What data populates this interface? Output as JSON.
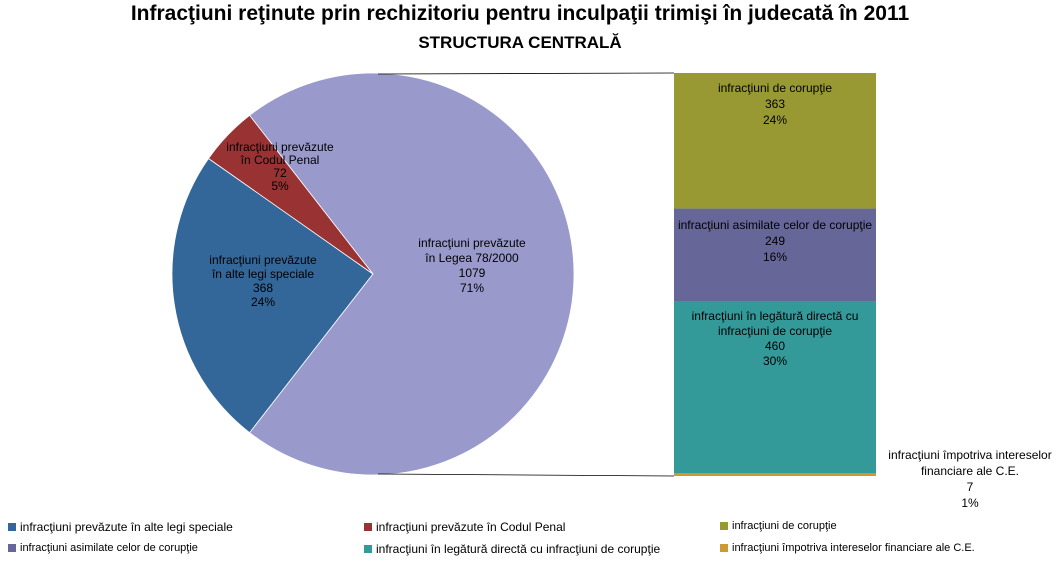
{
  "title": "Infracţiuni reţinute prin rechizitoriu pentru inculpaţii trimişi în judecată în 2011",
  "subtitle": "STRUCTURA CENTRALĂ",
  "chart_data": {
    "type": "bar-of-pie",
    "pie": [
      {
        "lines": [
          "infracţiuni prevăzute",
          "în alte legi speciale"
        ],
        "value": 368,
        "percent": "24%",
        "color": "#336699"
      },
      {
        "lines": [
          "infracţiuni prevăzute",
          "în Codul Penal"
        ],
        "value": 72,
        "percent": "5%",
        "color": "#993333"
      },
      {
        "lines": [
          "infracţiuni prevăzute",
          "în Legea 78/2000"
        ],
        "value": 1079,
        "percent": "71%",
        "color": "#9999cc"
      }
    ],
    "bar": [
      {
        "lines": [
          "infracţiuni de corupţie"
        ],
        "value": 363,
        "percent": "24%",
        "color": "#999933"
      },
      {
        "lines": [
          "infracţiuni asimilate  celor de corupţie"
        ],
        "value": 249,
        "percent": "16%",
        "color": "#666699"
      },
      {
        "lines": [
          "infracţiuni în legătură directă cu",
          "infracţiuni de corupţie"
        ],
        "value": 460,
        "percent": "30%",
        "color": "#339999"
      },
      {
        "lines": [
          "infracţiuni împotriva intereselor",
          "financiare ale C.E."
        ],
        "value": 7,
        "percent": "1%",
        "color": "#cc9933"
      }
    ],
    "legend": [
      {
        "label": "infracţiuni prevăzute în alte legi speciale",
        "color": "#336699"
      },
      {
        "label": "infracţiuni prevăzute în Codul Penal",
        "color": "#993333"
      },
      {
        "label": "infracţiuni de corupţie",
        "color": "#999933"
      },
      {
        "label": "infracţiuni asimilate  celor de corupţie",
        "color": "#666699"
      },
      {
        "label": "infracţiuni în legătură directă cu infracţiuni de corupţie",
        "color": "#339999"
      },
      {
        "label": "infracţiuni împotriva  intereselor financiare ale C.E.",
        "color": "#cc9933"
      }
    ]
  }
}
